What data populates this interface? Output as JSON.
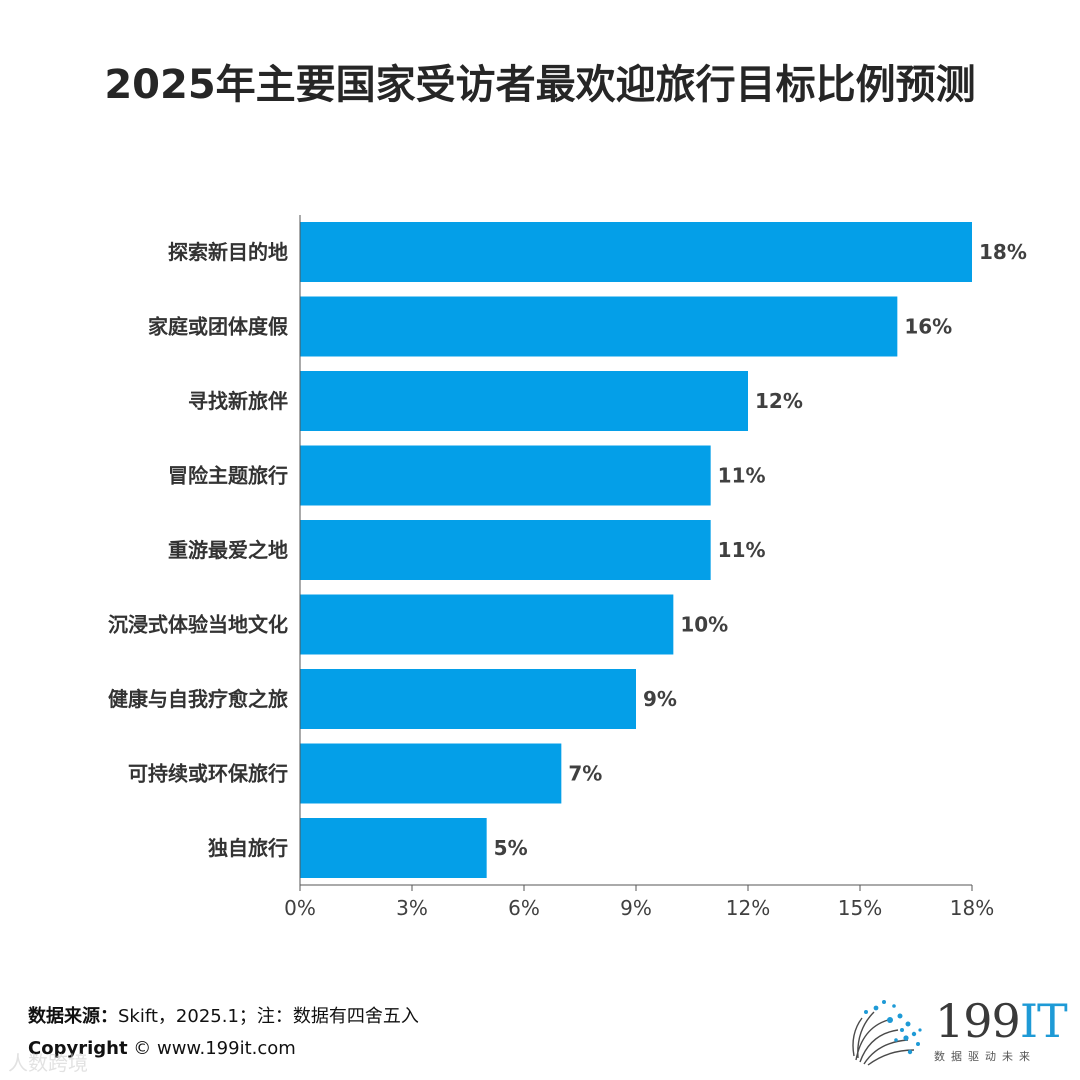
{
  "chart_data": {
    "type": "bar",
    "orientation": "horizontal",
    "title": "2025年主要国家受访者最欢迎旅行目标比例预测",
    "categories": [
      "探索新目的地",
      "家庭或团体度假",
      "寻找新旅伴",
      "冒险主题旅行",
      "重游最爱之地",
      "沉浸式体验当地文化",
      "健康与自我疗愈之旅",
      "可持续或环保旅行",
      "独自旅行"
    ],
    "values": [
      18,
      16,
      12,
      11,
      11,
      10,
      9,
      7,
      5
    ],
    "value_labels": [
      "18%",
      "16%",
      "12%",
      "11%",
      "11%",
      "10%",
      "9%",
      "7%",
      "5%"
    ],
    "xlim": [
      0,
      18
    ],
    "xticks": [
      0,
      3,
      6,
      9,
      12,
      15,
      18
    ],
    "xtick_labels": [
      "0%",
      "3%",
      "6%",
      "9%",
      "12%",
      "15%",
      "18%"
    ],
    "xlabel": "",
    "ylabel": "",
    "grid": false,
    "bar_color": "#049fe8"
  },
  "footer": {
    "source_label": "数据来源：",
    "source_text": "Skift，2025.1；注：数据有四舍五入",
    "copyright_label": "Copyright",
    "copyright_text": " ©  www.199it.com",
    "watermark": "人数跨境"
  },
  "logo": {
    "name_digits": "199",
    "name_letters": "IT",
    "tagline": "数据驱动未来"
  }
}
